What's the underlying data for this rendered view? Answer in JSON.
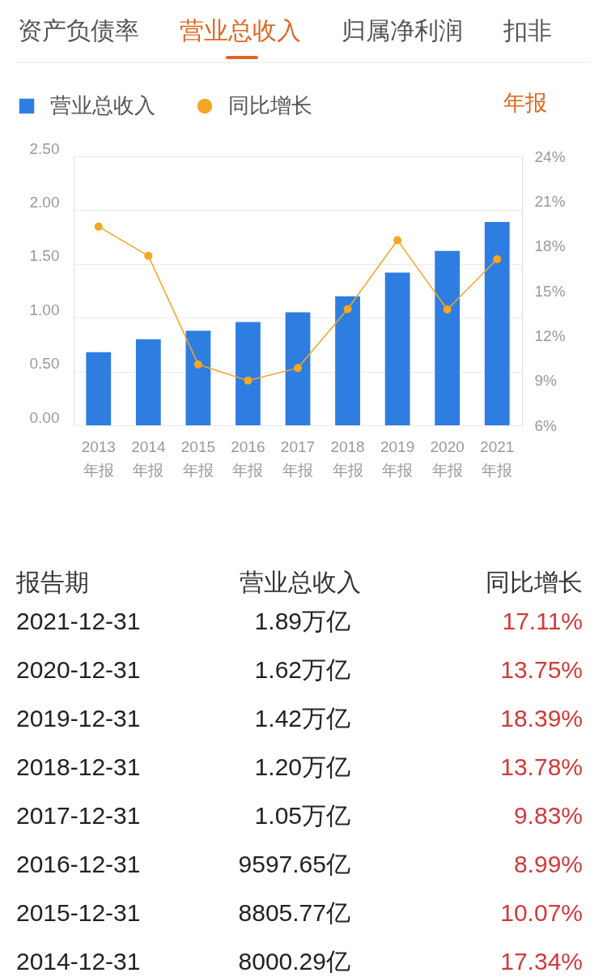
{
  "chart_data": {
    "type": "bar",
    "categories": [
      "2013\n年报",
      "2014\n年报",
      "2015\n年报",
      "2016\n年报",
      "2017\n年报",
      "2018\n年报",
      "2019\n年报",
      "2020\n年报",
      "2021\n年报"
    ],
    "series": [
      {
        "name": "营业总收入",
        "color": "#2e7de1",
        "values": [
          0.68,
          0.8,
          0.88,
          0.96,
          1.05,
          1.2,
          1.42,
          1.62,
          1.89
        ]
      },
      {
        "name": "同比增长",
        "type": "line",
        "axis": "y2",
        "color": "#f5a623",
        "marker": "circle",
        "values": [
          19.3,
          17.34,
          10.07,
          8.99,
          9.83,
          13.78,
          18.39,
          13.75,
          17.11
        ]
      }
    ],
    "ylim": [
      0,
      2.5
    ],
    "yticks": [
      {
        "value": 0,
        "label": "0.00"
      },
      {
        "value": 0.5,
        "label": "0.50"
      },
      {
        "value": 1,
        "label": "1.00"
      },
      {
        "value": 1.5,
        "label": "1.50"
      },
      {
        "value": 2,
        "label": "2.00"
      },
      {
        "value": 2.5,
        "label": "2.50"
      }
    ],
    "y2lim": [
      6,
      24
    ],
    "y2ticks": [
      {
        "value": 6,
        "label": "6%"
      },
      {
        "value": 9,
        "label": "9%"
      },
      {
        "value": 12,
        "label": "12%"
      },
      {
        "value": 15,
        "label": "15%"
      },
      {
        "value": 18,
        "label": "18%"
      },
      {
        "value": 21,
        "label": "21%"
      },
      {
        "value": 24,
        "label": "24%"
      }
    ],
    "grid": "y",
    "legend": "top left",
    "annotations": [
      "资产负债率",
      "营业总收入",
      "归属净利润",
      "扣非",
      "年报",
      "报告期",
      "营业总收入",
      "同比增长",
      "2021-12-31",
      "1.89万亿",
      "17.11%",
      "2020-12-31",
      "1.62万亿",
      "13.75%",
      "2019-12-31",
      "1.42万亿",
      "18.39%",
      "2018-12-31",
      "1.20万亿",
      "13.78%",
      "2017-12-31",
      "1.05万亿",
      "9.83%",
      "2016-12-31",
      "9597.65亿",
      "8.99%",
      "2015-12-31",
      "8805.77亿",
      "10.07%",
      "2014-12-31",
      "8000.29亿",
      "17.34%"
    ]
  }
}
